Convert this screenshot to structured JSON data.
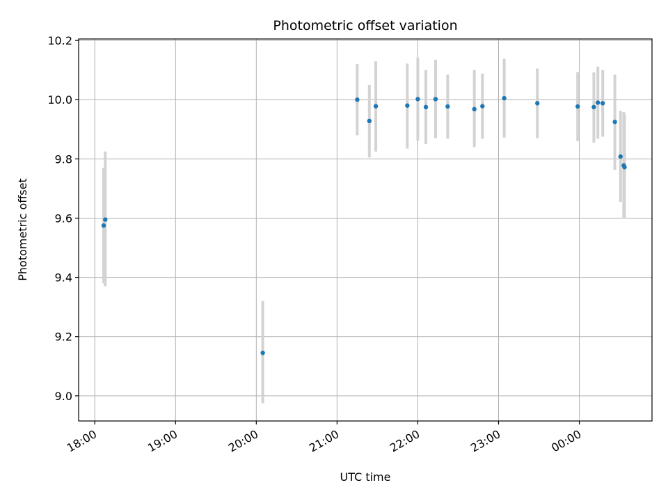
{
  "chart_data": {
    "type": "scatter",
    "title": "Photometric offset variation",
    "xlabel": "UTC time",
    "ylabel": "Photometric offset",
    "x_unit": "hours since 18:00 UTC",
    "xlim": [
      -0.2,
      6.9
    ],
    "ylim": [
      8.915,
      10.205
    ],
    "x_ticks": [
      {
        "label": "18:00",
        "value": 0
      },
      {
        "label": "19:00",
        "value": 1
      },
      {
        "label": "20:00",
        "value": 2
      },
      {
        "label": "21:00",
        "value": 3
      },
      {
        "label": "22:00",
        "value": 4
      },
      {
        "label": "23:00",
        "value": 5
      },
      {
        "label": "00:00",
        "value": 6
      }
    ],
    "y_ticks": [
      {
        "label": "9.0",
        "value": 9.0
      },
      {
        "label": "9.2",
        "value": 9.2
      },
      {
        "label": "9.4",
        "value": 9.4
      },
      {
        "label": "9.6",
        "value": 9.6
      },
      {
        "label": "9.8",
        "value": 9.8
      },
      {
        "label": "10.0",
        "value": 10.0
      },
      {
        "label": "10.2",
        "value": 10.2
      }
    ],
    "grid": true,
    "marker_color": "#1f77b4",
    "errorbar_color": "#d3d3d3",
    "points": [
      {
        "x": 0.11,
        "y": 9.575,
        "lo": 9.38,
        "hi": 9.77
      },
      {
        "x": 0.13,
        "y": 9.595,
        "lo": 9.37,
        "hi": 9.825
      },
      {
        "x": 2.08,
        "y": 9.145,
        "lo": 8.975,
        "hi": 9.32
      },
      {
        "x": 3.25,
        "y": 10.0,
        "lo": 9.88,
        "hi": 10.12
      },
      {
        "x": 3.4,
        "y": 9.928,
        "lo": 9.805,
        "hi": 10.05
      },
      {
        "x": 3.48,
        "y": 9.978,
        "lo": 9.825,
        "hi": 10.13
      },
      {
        "x": 3.87,
        "y": 9.98,
        "lo": 9.835,
        "hi": 10.122
      },
      {
        "x": 4.0,
        "y": 10.002,
        "lo": 9.862,
        "hi": 10.142
      },
      {
        "x": 4.1,
        "y": 9.975,
        "lo": 9.85,
        "hi": 10.1
      },
      {
        "x": 4.22,
        "y": 10.002,
        "lo": 9.87,
        "hi": 10.135
      },
      {
        "x": 4.37,
        "y": 9.977,
        "lo": 9.868,
        "hi": 10.085
      },
      {
        "x": 4.7,
        "y": 9.968,
        "lo": 9.84,
        "hi": 10.1
      },
      {
        "x": 4.8,
        "y": 9.978,
        "lo": 9.868,
        "hi": 10.088
      },
      {
        "x": 5.07,
        "y": 10.005,
        "lo": 9.872,
        "hi": 10.138
      },
      {
        "x": 5.48,
        "y": 9.988,
        "lo": 9.87,
        "hi": 10.105
      },
      {
        "x": 5.98,
        "y": 9.977,
        "lo": 9.86,
        "hi": 10.093
      },
      {
        "x": 6.18,
        "y": 9.975,
        "lo": 9.855,
        "hi": 10.092
      },
      {
        "x": 6.23,
        "y": 9.99,
        "lo": 9.868,
        "hi": 10.112
      },
      {
        "x": 6.29,
        "y": 9.988,
        "lo": 9.875,
        "hi": 10.1
      },
      {
        "x": 6.44,
        "y": 9.925,
        "lo": 9.763,
        "hi": 10.085
      },
      {
        "x": 6.51,
        "y": 9.808,
        "lo": 9.655,
        "hi": 9.962
      },
      {
        "x": 6.55,
        "y": 9.778,
        "lo": 9.598,
        "hi": 9.958
      },
      {
        "x": 6.56,
        "y": 9.772,
        "lo": 9.6,
        "hi": 9.95
      }
    ]
  }
}
